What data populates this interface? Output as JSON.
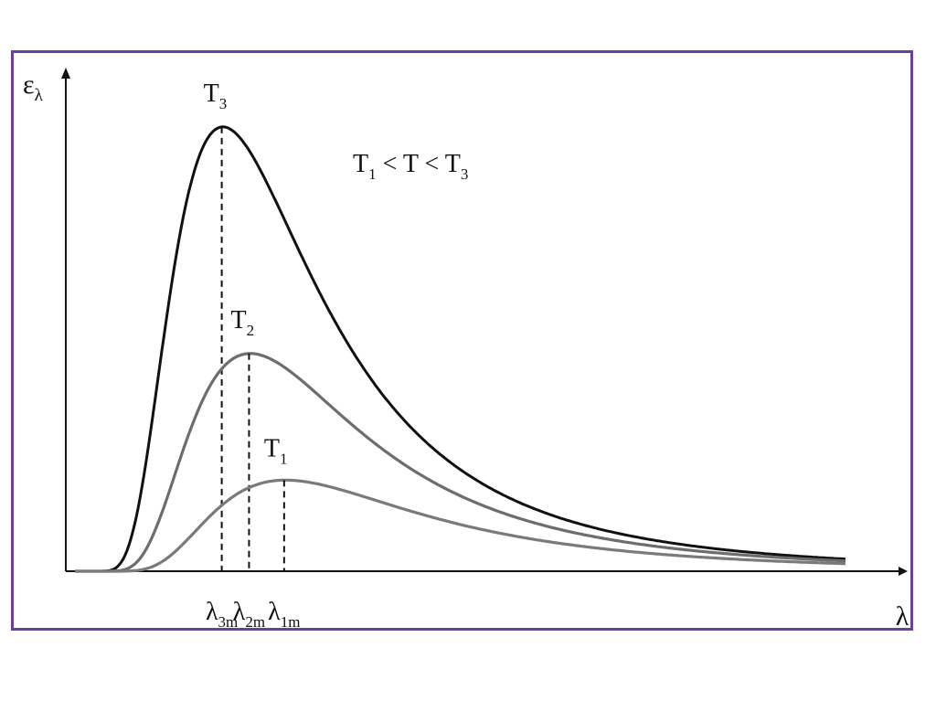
{
  "chart_data": {
    "type": "line",
    "xlabel": "λ",
    "ylabel": "ε",
    "ylabel_sub": "λ",
    "annotation": {
      "parts": [
        "T",
        "1",
        " < T < T",
        "3"
      ]
    },
    "peak_labels": [
      {
        "name": "λ",
        "sub": "3m"
      },
      {
        "name": "λ",
        "sub": "2m"
      },
      {
        "name": "λ",
        "sub": "1m"
      }
    ],
    "series": [
      {
        "name": "T",
        "sub": "3",
        "color": "#111111",
        "peak_x": 0.2,
        "peak_y": 1.0
      },
      {
        "name": "T",
        "sub": "2",
        "color": "#6d6d6d",
        "peak_x": 0.235,
        "peak_y": 0.49
      },
      {
        "name": "T",
        "sub": "1",
        "color": "#7a7a7a",
        "peak_x": 0.28,
        "peak_y": 0.205
      }
    ],
    "xlim": [
      0,
      1
    ],
    "ylim": [
      0,
      1.08
    ]
  },
  "colors": {
    "frame": "#6a3fa0",
    "axis": "#111111"
  }
}
